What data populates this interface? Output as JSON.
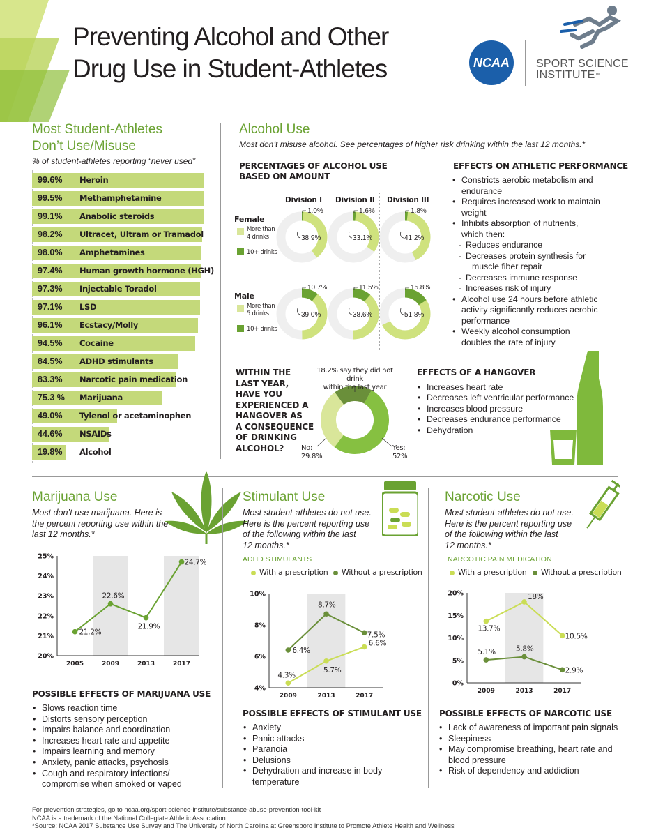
{
  "title_line1": "Preventing Alcohol and Other",
  "title_line2": "Drug Use in Student-Athletes",
  "logo": {
    "ncaa": "NCAA",
    "ssi_line1": "SPORT SCIENCE",
    "ssi_line2": "INSTITUTE",
    "tm": "™"
  },
  "nonuse": {
    "title_line1": "Most Student-Athletes",
    "title_line2": "Don’t Use/Misuse",
    "subtitle": "% of student-athletes reporting “never used”",
    "items": [
      {
        "pct": "99.6%",
        "name": "Heroin",
        "value": 99.6
      },
      {
        "pct": "99.5%",
        "name": "Methamphetamine",
        "value": 99.5
      },
      {
        "pct": "99.1%",
        "name": "Anabolic steroids",
        "value": 99.1
      },
      {
        "pct": "98.2%",
        "name": "Ultracet, Ultram or Tramadol",
        "value": 98.2
      },
      {
        "pct": "98.0%",
        "name": "Amphetamines",
        "value": 98.0
      },
      {
        "pct": "97.4%",
        "name": "Human growth hormone (HGH)",
        "value": 97.4
      },
      {
        "pct": "97.3%",
        "name": "Injectable Toradol",
        "value": 97.3
      },
      {
        "pct": "97.1%",
        "name": "LSD",
        "value": 97.1
      },
      {
        "pct": "96.1%",
        "name": "Ecstacy/Molly",
        "value": 96.1
      },
      {
        "pct": "94.5%",
        "name": "Cocaine",
        "value": 94.5
      },
      {
        "pct": "84.5%",
        "name": "ADHD stimulants",
        "value": 84.5
      },
      {
        "pct": "83.3%",
        "name": "Narcotic pain medication",
        "value": 83.3
      },
      {
        "pct": "75.3 %",
        "name": "Marijuana",
        "value": 75.3
      },
      {
        "pct": "49.0%",
        "name": "Tylenol or acetaminophen",
        "value": 49.0
      },
      {
        "pct": "44.6%",
        "name": "NSAIDs",
        "value": 44.6
      },
      {
        "pct": "19.8%",
        "name": "Alcohol",
        "value": 19.8
      }
    ]
  },
  "alcohol": {
    "title": "Alcohol Use",
    "intro": "Most don’t misuse alcohol. See percentages of higher risk drinking within the last 12 months.*",
    "amount_head_1": "PERCENTAGES OF ALCOHOL USE",
    "amount_head_2": "BASED ON AMOUNT",
    "divisions": [
      "Division I",
      "Division II",
      "Division III"
    ],
    "female_label": "Female",
    "male_label": "Male",
    "female_legend": {
      "a1": "More than",
      "a2": "4 drinks",
      "b": "10+ drinks"
    },
    "male_legend": {
      "a1": "More than",
      "a2": "5 drinks",
      "b": "10+ drinks"
    },
    "female": [
      {
        "more": "38.9%",
        "ten": "1.0%",
        "more_v": 38.9,
        "ten_v": 1.0
      },
      {
        "more": "33.1%",
        "ten": "1.6%",
        "more_v": 33.1,
        "ten_v": 1.6
      },
      {
        "more": "41.2%",
        "ten": "1.8%",
        "more_v": 41.2,
        "ten_v": 1.8
      }
    ],
    "male": [
      {
        "more": "39.0%",
        "ten": "10.7%",
        "more_v": 39.0,
        "ten_v": 10.7
      },
      {
        "more": "38.6%",
        "ten": "11.5%",
        "more_v": 38.6,
        "ten_v": 11.5
      },
      {
        "more": "51.8%",
        "ten": "15.8%",
        "more_v": 51.8,
        "ten_v": 15.8
      }
    ],
    "effects_title": "EFFECTS ON ATHLETIC PERFORMANCE",
    "effects": [
      {
        "t": "Constricts aerobic metabolism and",
        "t2": "endurance"
      },
      {
        "t": "Requires increased work to maintain",
        "t2": "weight"
      },
      {
        "t": "Inhibits absorption of nutrients,",
        "t2": "which then:"
      },
      {
        "sub": "Reduces endurance"
      },
      {
        "sub": "Decreases protein synthesis for",
        "sub2": "muscle fiber repair"
      },
      {
        "sub": "Decreases immune response"
      },
      {
        "sub": "Increases risk of injury"
      },
      {
        "t": "Alcohol use 24 hours before athletic",
        "t2": "activity significantly reduces aerobic",
        "t3": "performance"
      },
      {
        "t": "Weekly alcohol consumption",
        "t2": "doubles the rate of injury"
      }
    ],
    "hangover_q": [
      "WITHIN THE",
      "LAST YEAR,",
      "HAVE YOU",
      "EXPERIENCED A",
      "HANGOVER AS",
      "A CONSEQUENCE",
      "OF DRINKING",
      "ALCOHOL?"
    ],
    "hangover_note_1": "18.2% say they did not drink",
    "hangover_note_2": "within the last year",
    "hangover_no_1": "No:",
    "hangover_no_2": "29.8%",
    "hangover_yes_1": "Yes:",
    "hangover_yes_2": "52%",
    "hangover_values": {
      "nodrink": 18.2,
      "yes": 52,
      "no": 29.8
    },
    "hangover_effects_title": "EFFECTS OF A HANGOVER",
    "hangover_effects": [
      "Increases heart rate",
      "Decreases left ventricular performance",
      "Increases blood pressure",
      "Decreases endurance performance",
      "Dehydration"
    ]
  },
  "marijuana": {
    "title": "Marijuana Use",
    "intro": [
      "Most don’t use marijuana. Here is",
      "the percent reporting use within the",
      "last 12 months.*"
    ],
    "effects_title": "POSSIBLE EFFECTS OF MARIJUANA USE",
    "effects": [
      "Slows reaction time",
      "Distorts sensory perception",
      "Impairs balance and coordination",
      "Increases heart rate and appetite",
      "Impairs learning and memory",
      "Anxiety, panic attacks, psychosis"
    ],
    "effects_last_1": "Cough and respiratory infections/",
    "effects_last_2": "compromise when smoked or vaped"
  },
  "stimulant": {
    "title": "Stimulant Use",
    "intro": [
      "Most student-athletes do not use.",
      "Here is the percent reporting use",
      "of the following within the last",
      "12 months.*"
    ],
    "sub": "ADHD STIMULANTS",
    "legend_with": "With a prescription",
    "legend_without": "Without a prescription",
    "effects_title": "POSSIBLE EFFECTS OF STIMULANT USE",
    "effects": [
      "Anxiety",
      "Panic attacks",
      "Paranoia",
      "Delusions"
    ],
    "effects_last_1": "Dehydration and increase in body",
    "effects_last_2": "temperature"
  },
  "narcotic": {
    "title": "Narcotic Use",
    "intro": [
      "Most student-athletes do not use.",
      "Here is the percent reporting use",
      "of the following within the last",
      "12 months.*"
    ],
    "sub": "NARCOTIC PAIN MEDICATION",
    "legend_with": "With a prescription",
    "legend_without": "Without a prescription",
    "effects_title": "POSSIBLE EFFECTS OF NARCOTIC USE",
    "effects": [
      "Lack of awareness of important pain signals",
      "Sleepiness"
    ],
    "effects_mid_1": "May compromise breathing, heart rate and",
    "effects_mid_2": "blood pressure",
    "effects_last": "Risk of dependency and addiction"
  },
  "chart_data": [
    {
      "type": "line",
      "x": [
        "2005",
        "2009",
        "2013",
        "2017"
      ],
      "series": [
        {
          "values": [
            21.2,
            22.6,
            21.9,
            24.7
          ],
          "labels": [
            "21.2%",
            "22.6%",
            "21.9%",
            "24.7%"
          ]
        }
      ],
      "yticks": [
        "20%",
        "21%",
        "22%",
        "23%",
        "24%",
        "25%"
      ],
      "ylim": [
        20,
        25
      ],
      "colors": {
        "line": "#6aa232"
      }
    },
    {
      "type": "line",
      "x": [
        "2009",
        "2013",
        "2017"
      ],
      "series": [
        {
          "name": "With a prescription",
          "values": [
            4.3,
            5.7,
            6.6
          ],
          "labels": [
            "4.3%",
            "5.7%",
            "6.6%"
          ]
        },
        {
          "name": "Without a prescription",
          "values": [
            6.4,
            8.7,
            7.5
          ],
          "labels": [
            "6.4%",
            "8.7%",
            "7.5%"
          ]
        }
      ],
      "yticks": [
        "4%",
        "6%",
        "8%",
        "10%"
      ],
      "ylim": [
        4,
        10
      ],
      "colors": {
        "with": "#cadd55",
        "without": "#6a8f3a"
      }
    },
    {
      "type": "line",
      "x": [
        "2009",
        "2013",
        "2017"
      ],
      "series": [
        {
          "name": "With a prescription",
          "values": [
            13.7,
            18,
            10.5
          ],
          "labels": [
            "13.7%",
            "18%",
            "10.5%"
          ]
        },
        {
          "name": "Without a prescription",
          "values": [
            5.1,
            5.8,
            2.9
          ],
          "labels": [
            "5.1%",
            "5.8%",
            "2.9%"
          ]
        }
      ],
      "yticks": [
        "0%",
        "5%",
        "10%",
        "15%",
        "20%"
      ],
      "ylim": [
        0,
        20
      ],
      "colors": {
        "with": "#cadd55",
        "without": "#6a8f3a"
      }
    }
  ],
  "footer": {
    "l1": "For prevention strategies, go to ncaa.org/sport-science-institute/substance-abuse-prevention-tool-kit",
    "l2": "NCAA is a trademark of the National Collegiate Athletic Association.",
    "l3": "*Source: NCAA 2017 Substance Use Survey and The University of North Carolina at Greensboro Institute to Promote Athlete Health and Wellness"
  },
  "colors": {
    "green": "#6aa232",
    "light": "#c4d97a",
    "lime": "#cadd55",
    "dark": "#6a8f3a",
    "ncaa_blue": "#1b5faa"
  }
}
